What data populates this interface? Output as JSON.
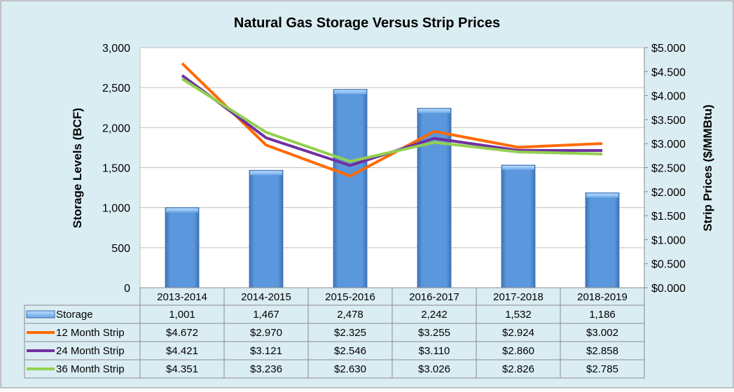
{
  "chart_data": {
    "type": "bar+line",
    "title": "Natural Gas Storage Versus Strip Prices",
    "ylabel": "Storage Levels (BCF)",
    "y2label": "Strip Prices ($/MMBtu)",
    "ylim": [
      0,
      3000
    ],
    "y2lim": [
      0,
      5
    ],
    "yticks": [
      "0",
      "500",
      "1,000",
      "1,500",
      "2,000",
      "2,500",
      "3,000"
    ],
    "y2ticks": [
      "$0.000",
      "$0.500",
      "$1.000",
      "$1.500",
      "$2.000",
      "$2.500",
      "$3.000",
      "$3.500",
      "$4.000",
      "$4.500",
      "$5.000"
    ],
    "categories": [
      "2013-2014",
      "2014-2015",
      "2015-2016",
      "2016-2017",
      "2017-2018",
      "2018-2019"
    ],
    "grid": true,
    "legend": "data-table",
    "series": [
      {
        "name": "Storage",
        "kind": "bar",
        "axis": "left",
        "color": "#5b97dd",
        "values": [
          1001,
          1467,
          2478,
          2242,
          1532,
          1186
        ],
        "labels": [
          "1,001",
          "1,467",
          "2,478",
          "2,242",
          "1,532",
          "1,186"
        ]
      },
      {
        "name": "12 Month Strip",
        "kind": "line",
        "axis": "right",
        "color": "#ff6a00",
        "values": [
          4.672,
          2.97,
          2.325,
          3.255,
          2.924,
          3.002
        ],
        "labels": [
          "$4.672",
          "$2.970",
          "$2.325",
          "$3.255",
          "$2.924",
          "$3.002"
        ]
      },
      {
        "name": "24 Month Strip",
        "kind": "line",
        "axis": "right",
        "color": "#7030a0",
        "values": [
          4.421,
          3.121,
          2.546,
          3.11,
          2.86,
          2.858
        ],
        "labels": [
          "$4.421",
          "$3.121",
          "$2.546",
          "$3.110",
          "$2.860",
          "$2.858"
        ]
      },
      {
        "name": "36 Month Strip",
        "kind": "line",
        "axis": "right",
        "color": "#92d050",
        "values": [
          4.351,
          3.236,
          2.63,
          3.026,
          2.826,
          2.785
        ],
        "labels": [
          "$4.351",
          "$3.236",
          "$2.630",
          "$3.026",
          "$2.826",
          "$2.785"
        ]
      }
    ]
  }
}
